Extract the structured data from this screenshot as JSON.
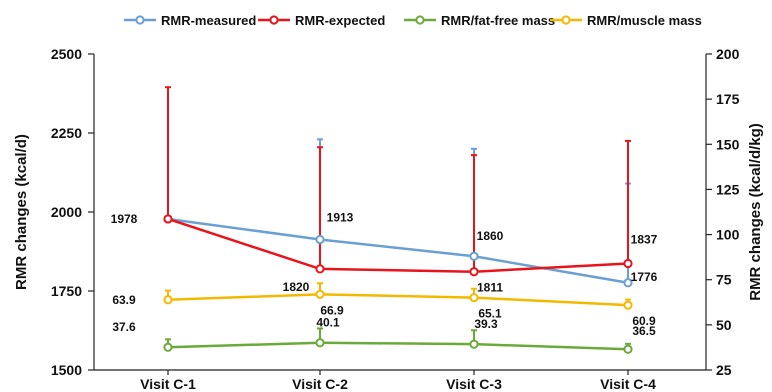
{
  "chart_data": {
    "type": "line",
    "categories": [
      "Visit C-1",
      "Visit C-2",
      "Visit C-3",
      "Visit C-4"
    ],
    "ylabel_left": "RMR changes (kcal/d)",
    "ylabel_right": "RMR changes (kcal/d/kg)",
    "ylim_left": [
      1500,
      2500
    ],
    "ylim_right": [
      25,
      200
    ],
    "yticks_left": [
      1500,
      1750,
      2000,
      2250,
      2500
    ],
    "yticks_right": [
      25,
      50,
      75,
      100,
      125,
      150,
      175,
      200
    ],
    "grid": false,
    "legend_position": "top",
    "series": [
      {
        "name": "RMR-measured",
        "axis": "left",
        "color": "#6a9fd4",
        "values": [
          1978,
          1913,
          1860,
          1776
        ],
        "error_upper": [
          null,
          2230,
          2200,
          2090
        ],
        "labels": [
          "",
          "1913",
          "1860",
          "1776"
        ]
      },
      {
        "name": "RMR-expected",
        "axis": "left",
        "color": "#e8141c",
        "values": [
          1978,
          1820,
          1811,
          1837
        ],
        "error_upper": [
          2395,
          2205,
          2180,
          2225
        ],
        "labels": [
          "1978",
          "1820",
          "1811",
          "1837"
        ]
      },
      {
        "name": "RMR/fat-free mass",
        "axis": "right",
        "color": "#6aaa3a",
        "values": [
          37.6,
          40.1,
          39.3,
          36.5
        ],
        "error_upper": [
          42,
          48,
          47,
          39.5
        ],
        "labels": [
          "37.6",
          "40.1",
          "39.3",
          "36.5"
        ]
      },
      {
        "name": "RMR/muscle mass",
        "axis": "right",
        "color": "#f5b800",
        "values": [
          63.9,
          66.9,
          65.1,
          60.9
        ],
        "error_upper": [
          69,
          73,
          70,
          64
        ],
        "labels": [
          "63.9",
          "66.9",
          "65.1",
          "60.9"
        ]
      }
    ]
  }
}
